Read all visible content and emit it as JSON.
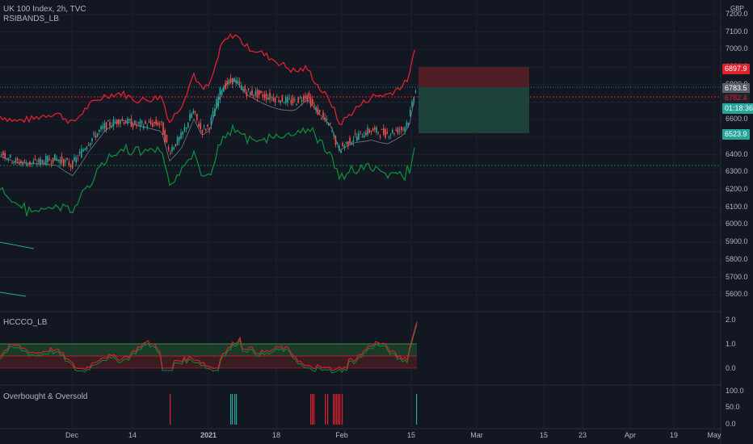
{
  "header": {
    "symbol_line": "UK 100 Index, 2h, TVC",
    "indicator1": "RSIBANDS_LB",
    "indicator2": "HCCCO_LB",
    "indicator3": "Overbought & Oversold"
  },
  "currency": "GBP",
  "price_axis": [
    "7200.0",
    "7100.0",
    "7000.0",
    "6900.0",
    "6800.0",
    "6700.0",
    "6600.0",
    "6500.0",
    "6400.0",
    "6300.0",
    "6200.0",
    "6100.0",
    "6000.0",
    "5900.0",
    "5800.0",
    "5700.0",
    "5600.0"
  ],
  "osc_axis": [
    "2.0",
    "1.0",
    "0.0"
  ],
  "obos_axis": [
    "100.0",
    "50.0",
    "0.0"
  ],
  "time_axis": [
    "Dec",
    "14",
    "2021",
    "18",
    "Feb",
    "15",
    "Mar",
    "15",
    "23",
    "Apr",
    "19",
    "May"
  ],
  "price_tags": {
    "upper_band": "6897.9",
    "last_price": "6783.5",
    "midline": "6782.4",
    "countdown": "01:18:36",
    "lower_band": "6523.9"
  },
  "colors": {
    "background": "#131722",
    "upper_band": "#e0212e",
    "lower_band": "#0f8a3b",
    "candle_up": "#26a69a",
    "candle_down": "#ef5350",
    "countdown_bg": "#26a69a",
    "zone_red": "#5a1e24",
    "zone_green": "#1e4a40"
  },
  "chart_data": {
    "type": "line",
    "ylim": [
      5550,
      7250
    ],
    "series": [
      {
        "name": "RSIBANDS_LB",
        "values": [
          6480,
          6550,
          6520,
          6610,
          6680,
          6720,
          6690,
          6820,
          6760,
          6780,
          6700,
          6640,
          6720,
          6980,
          6900,
          6860,
          6780,
          6740,
          6700,
          6880,
          6960,
          6820,
          6760,
          6690,
          6650,
          6600,
          6783
        ]
      },
      {
        "name": "HCCCO_LB",
        "values": [
          0.3,
          0.5,
          0.6,
          0.4,
          0.5,
          0.7,
          0.2,
          0.8,
          1.1,
          0.6,
          0.9,
          0.4,
          0.2,
          0.5,
          0.6,
          0.7,
          1.7
        ]
      }
    ]
  }
}
